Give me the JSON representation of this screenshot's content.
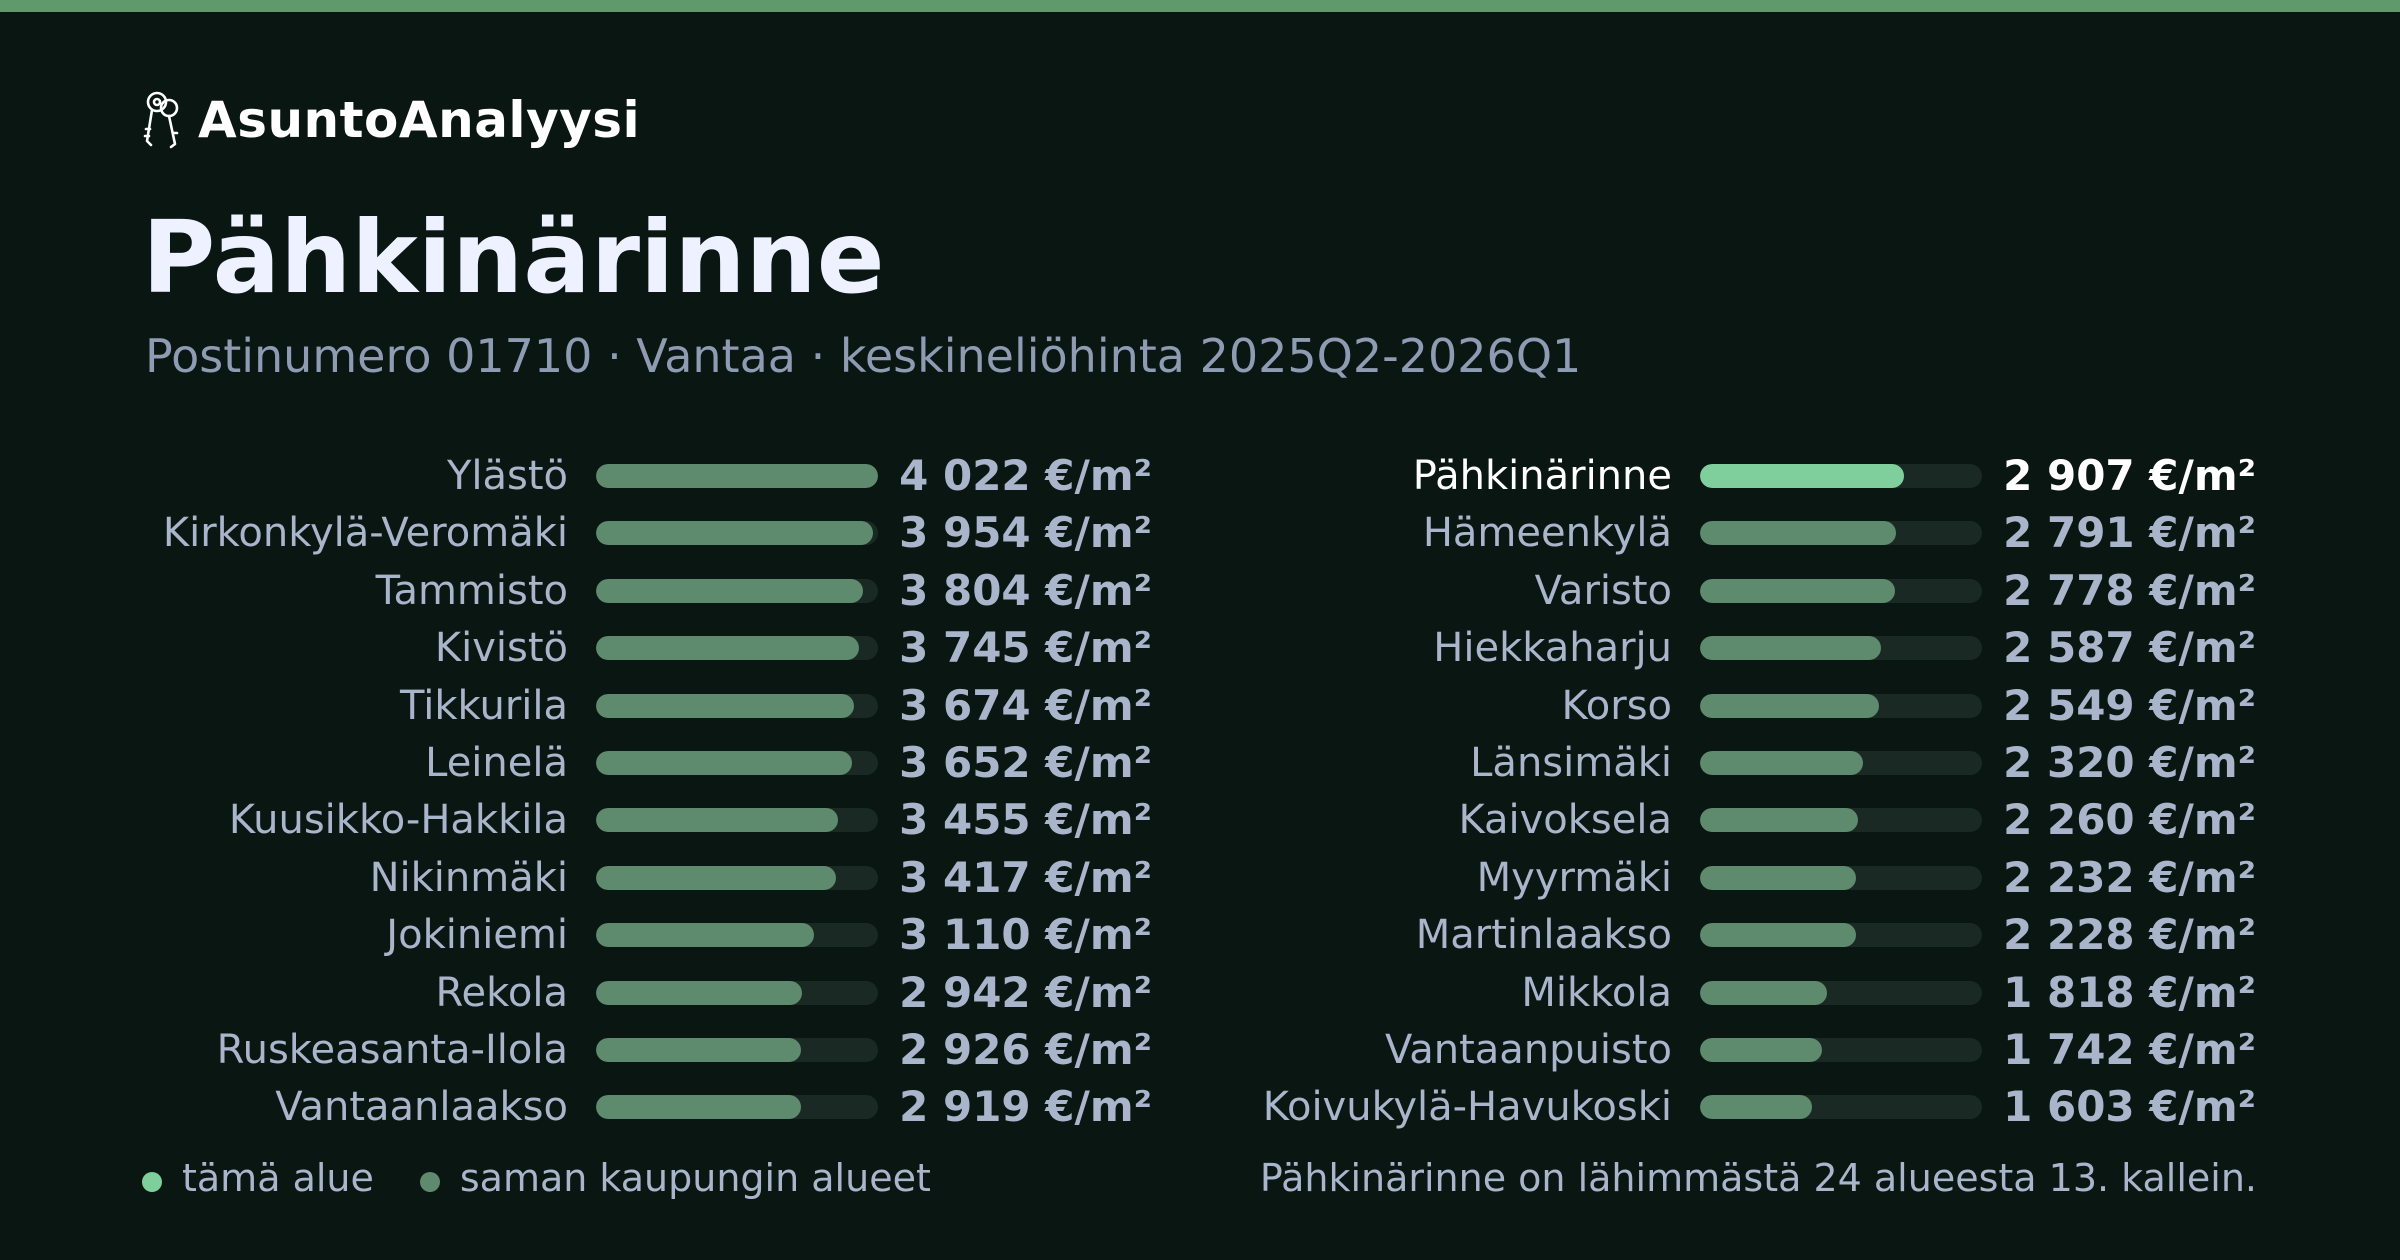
{
  "brand": {
    "name": "AsuntoAnalyysi",
    "icon": "keys-icon"
  },
  "title": "Pähkinärinne",
  "subtitle": "Postinumero 01710 · Vantaa · keskineliöhinta 2025Q2-2026Q1",
  "colors": {
    "background": "#0a1612",
    "accent_bar": "#5f9a6a",
    "this_area": "#7ecf9b",
    "other_areas": "#5e8a6d",
    "track": "#1b2925",
    "text": "#aab4cb"
  },
  "legend": {
    "this_area": "tämä alue",
    "other_areas": "saman kaupungin alueet"
  },
  "summary": "Pähkinärinne on lähimmästä 24 alueesta 13. kallein.",
  "chart_data": {
    "type": "bar",
    "orientation": "horizontal",
    "unit": "€/m²",
    "max": 4022,
    "highlight": "Pähkinärinne",
    "columns": [
      [
        {
          "name": "Ylästö",
          "value": 4022,
          "label": "4 022 €/m²"
        },
        {
          "name": "Kirkonkylä-Veromäki",
          "value": 3954,
          "label": "3 954 €/m²"
        },
        {
          "name": "Tammisto",
          "value": 3804,
          "label": "3 804 €/m²"
        },
        {
          "name": "Kivistö",
          "value": 3745,
          "label": "3 745 €/m²"
        },
        {
          "name": "Tikkurila",
          "value": 3674,
          "label": "3 674 €/m²"
        },
        {
          "name": "Leinelä",
          "value": 3652,
          "label": "3 652 €/m²"
        },
        {
          "name": "Kuusikko-Hakkila",
          "value": 3455,
          "label": "3 455 €/m²"
        },
        {
          "name": "Nikinmäki",
          "value": 3417,
          "label": "3 417 €/m²"
        },
        {
          "name": "Jokiniemi",
          "value": 3110,
          "label": "3 110 €/m²"
        },
        {
          "name": "Rekola",
          "value": 2942,
          "label": "2 942 €/m²"
        },
        {
          "name": "Ruskeasanta-Ilola",
          "value": 2926,
          "label": "2 926 €/m²"
        },
        {
          "name": "Vantaanlaakso",
          "value": 2919,
          "label": "2 919 €/m²"
        }
      ],
      [
        {
          "name": "Pähkinärinne",
          "value": 2907,
          "label": "2 907 €/m²"
        },
        {
          "name": "Hämeenkylä",
          "value": 2791,
          "label": "2 791 €/m²"
        },
        {
          "name": "Varisto",
          "value": 2778,
          "label": "2 778 €/m²"
        },
        {
          "name": "Hiekkaharju",
          "value": 2587,
          "label": "2 587 €/m²"
        },
        {
          "name": "Korso",
          "value": 2549,
          "label": "2 549 €/m²"
        },
        {
          "name": "Länsimäki",
          "value": 2320,
          "label": "2 320 €/m²"
        },
        {
          "name": "Kaivoksela",
          "value": 2260,
          "label": "2 260 €/m²"
        },
        {
          "name": "Myyrmäki",
          "value": 2232,
          "label": "2 232 €/m²"
        },
        {
          "name": "Martinlaakso",
          "value": 2228,
          "label": "2 228 €/m²"
        },
        {
          "name": "Mikkola",
          "value": 1818,
          "label": "1 818 €/m²"
        },
        {
          "name": "Vantaanpuisto",
          "value": 1742,
          "label": "1 742 €/m²"
        },
        {
          "name": "Koivukylä-Havukoski",
          "value": 1603,
          "label": "1 603 €/m²"
        }
      ]
    ]
  }
}
